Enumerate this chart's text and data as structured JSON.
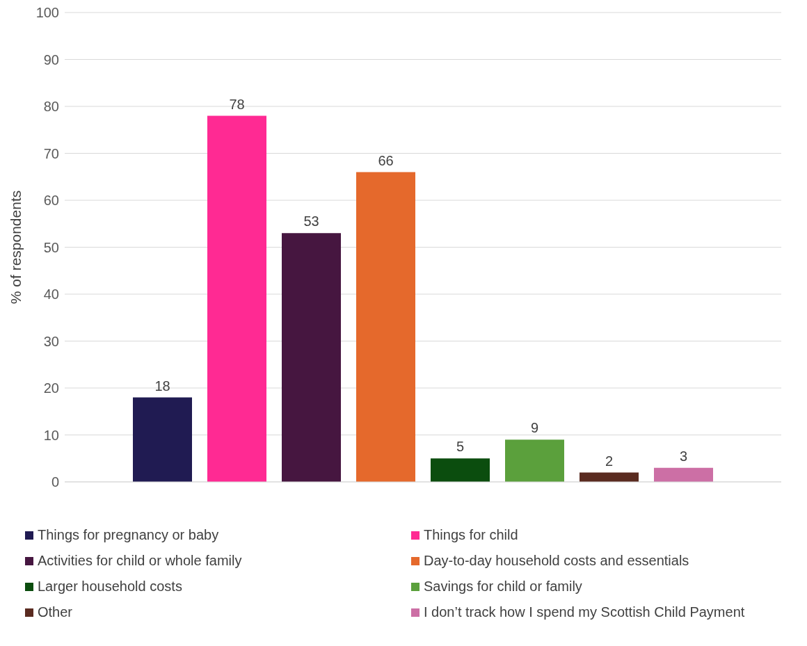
{
  "chart_data": {
    "type": "bar",
    "ylabel": "% of respondents",
    "categories": [
      null
    ],
    "series": [
      {
        "name": "Things for pregnancy or baby",
        "color": "#201b52",
        "values": [
          18
        ]
      },
      {
        "name": "Things for child",
        "color": "#ff2a93",
        "values": [
          78
        ]
      },
      {
        "name": "Activities for child or whole family",
        "color": "#461640",
        "values": [
          53
        ]
      },
      {
        "name": "Day-to-day household costs and essentials",
        "color": "#e5692c",
        "values": [
          66
        ]
      },
      {
        "name": "Larger household costs",
        "color": "#0b4d0e",
        "values": [
          5
        ]
      },
      {
        "name": "Savings for child or family",
        "color": "#5ba03c",
        "values": [
          9
        ]
      },
      {
        "name": "Other",
        "color": "#5a2b20",
        "values": [
          2
        ]
      },
      {
        "name": "I don’t track how I spend my Scottish Child Payment",
        "color": "#cc6fa5",
        "values": [
          3
        ]
      }
    ],
    "ylim": [
      0,
      100
    ],
    "yticks": [
      0,
      10,
      20,
      30,
      40,
      50,
      60,
      70,
      80,
      90,
      100
    ],
    "grid": "y",
    "legend": "bottom",
    "tick_labels": "y",
    "data_labels": true
  }
}
